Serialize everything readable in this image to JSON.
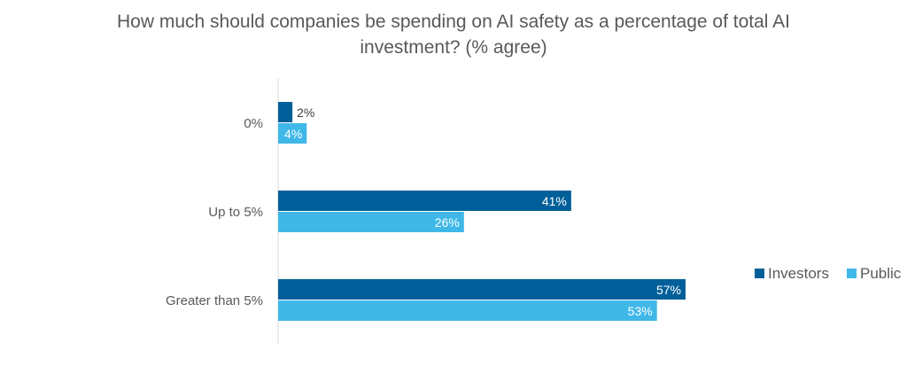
{
  "chart_data": {
    "type": "bar",
    "orientation": "horizontal",
    "title": "How much should companies be spending on AI safety as a percentage of total AI investment? (% agree)",
    "title_lines": [
      "How much should companies be spending on AI safety as a percentage of total AI",
      "investment? (% agree)"
    ],
    "categories": [
      "0%",
      "Up to 5%",
      "Greater than 5%"
    ],
    "series": [
      {
        "name": "Investors",
        "color": "#005f99",
        "values": [
          2,
          41,
          57
        ],
        "labels": [
          "2%",
          "41%",
          "57%"
        ]
      },
      {
        "name": "Public",
        "color": "#3fb8e8",
        "values": [
          4,
          26,
          53
        ],
        "labels": [
          "4%",
          "26%",
          "53%"
        ]
      }
    ],
    "xlim": [
      0,
      60
    ],
    "xlabel": "",
    "ylabel": "",
    "grid": false,
    "legend_position": "right"
  }
}
